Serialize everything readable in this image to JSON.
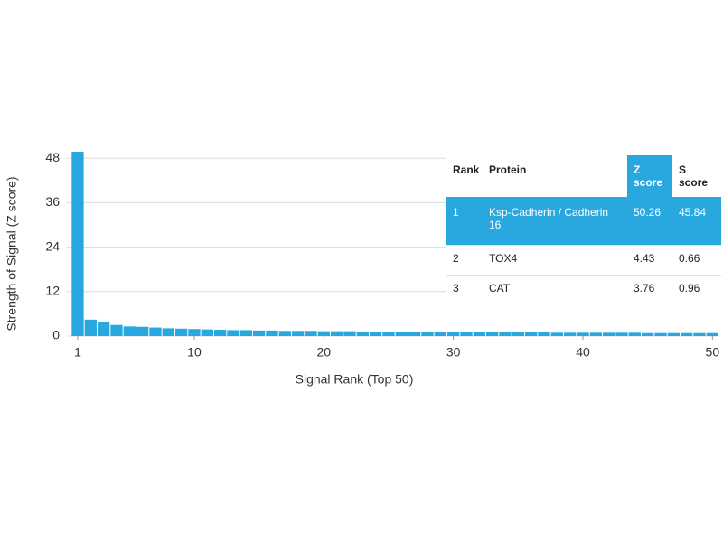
{
  "chart_data": {
    "type": "bar",
    "xlabel": "Signal Rank (Top 50)",
    "ylabel": "Strength of Signal (Z score)",
    "x": [
      1,
      2,
      3,
      4,
      5,
      6,
      7,
      8,
      9,
      10,
      11,
      12,
      13,
      14,
      15,
      16,
      17,
      18,
      19,
      20,
      21,
      22,
      23,
      24,
      25,
      26,
      27,
      28,
      29,
      30,
      31,
      32,
      33,
      34,
      35,
      36,
      37,
      38,
      39,
      40,
      41,
      42,
      43,
      44,
      45,
      46,
      47,
      48,
      49,
      50
    ],
    "values": [
      50.26,
      4.43,
      3.76,
      3.0,
      2.6,
      2.5,
      2.3,
      2.1,
      2.0,
      1.9,
      1.8,
      1.7,
      1.6,
      1.6,
      1.5,
      1.5,
      1.4,
      1.4,
      1.4,
      1.3,
      1.3,
      1.3,
      1.2,
      1.2,
      1.2,
      1.2,
      1.1,
      1.1,
      1.1,
      1.1,
      1.1,
      1.0,
      1.0,
      1.0,
      1.0,
      1.0,
      1.0,
      0.9,
      0.9,
      0.9,
      0.9,
      0.9,
      0.9,
      0.9,
      0.8,
      0.8,
      0.8,
      0.8,
      0.8,
      0.8
    ],
    "color": "#29a8e0",
    "xlim": [
      0.5,
      50.5
    ],
    "xticks": [
      1,
      10,
      20,
      30,
      40,
      50
    ],
    "ylim": [
      0,
      50
    ],
    "yticks": [
      0,
      12,
      24,
      36,
      48
    ],
    "grid": true,
    "table": {
      "columns": [
        "Rank",
        "Protein",
        "Z score",
        "S score"
      ],
      "rows": [
        [
          1,
          "Ksp-Cadherin / Cadherin 16",
          50.26,
          45.84
        ],
        [
          2,
          "TOX4",
          4.43,
          0.66
        ],
        [
          3,
          "CAT",
          3.76,
          0.96
        ]
      ]
    }
  }
}
